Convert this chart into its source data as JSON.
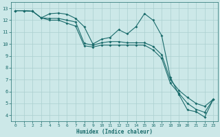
{
  "xlabel": "Humidex (Indice chaleur)",
  "bg_color": "#cce8e8",
  "grid_color": "#aacfcf",
  "line_color": "#1a6b6b",
  "xlim": [
    -0.5,
    23.5
  ],
  "ylim": [
    3.5,
    13.5
  ],
  "yticks": [
    4,
    5,
    6,
    7,
    8,
    9,
    10,
    11,
    12,
    13
  ],
  "xticks": [
    0,
    1,
    2,
    3,
    4,
    5,
    6,
    7,
    8,
    9,
    10,
    11,
    12,
    13,
    14,
    15,
    16,
    17,
    18,
    19,
    20,
    21,
    22,
    23
  ],
  "line1_y": [
    12.8,
    12.8,
    12.75,
    12.2,
    12.55,
    12.6,
    12.5,
    12.15,
    11.45,
    10.0,
    10.4,
    10.55,
    11.2,
    10.85,
    11.45,
    12.55,
    12.0,
    10.7,
    7.2,
    5.75,
    4.45,
    4.3,
    3.85,
    5.35
  ],
  "line2_y": [
    12.8,
    12.8,
    12.75,
    12.2,
    12.15,
    12.15,
    12.0,
    11.85,
    10.05,
    9.9,
    10.1,
    10.2,
    10.2,
    10.1,
    10.1,
    10.1,
    9.8,
    9.1,
    7.0,
    6.1,
    5.5,
    5.0,
    4.75,
    5.35
  ],
  "line3_y": [
    12.8,
    12.8,
    12.75,
    12.2,
    12.0,
    12.0,
    11.75,
    11.5,
    9.85,
    9.75,
    9.9,
    9.9,
    9.9,
    9.9,
    9.9,
    9.9,
    9.5,
    8.8,
    6.7,
    5.85,
    5.0,
    4.5,
    4.25,
    5.35
  ]
}
